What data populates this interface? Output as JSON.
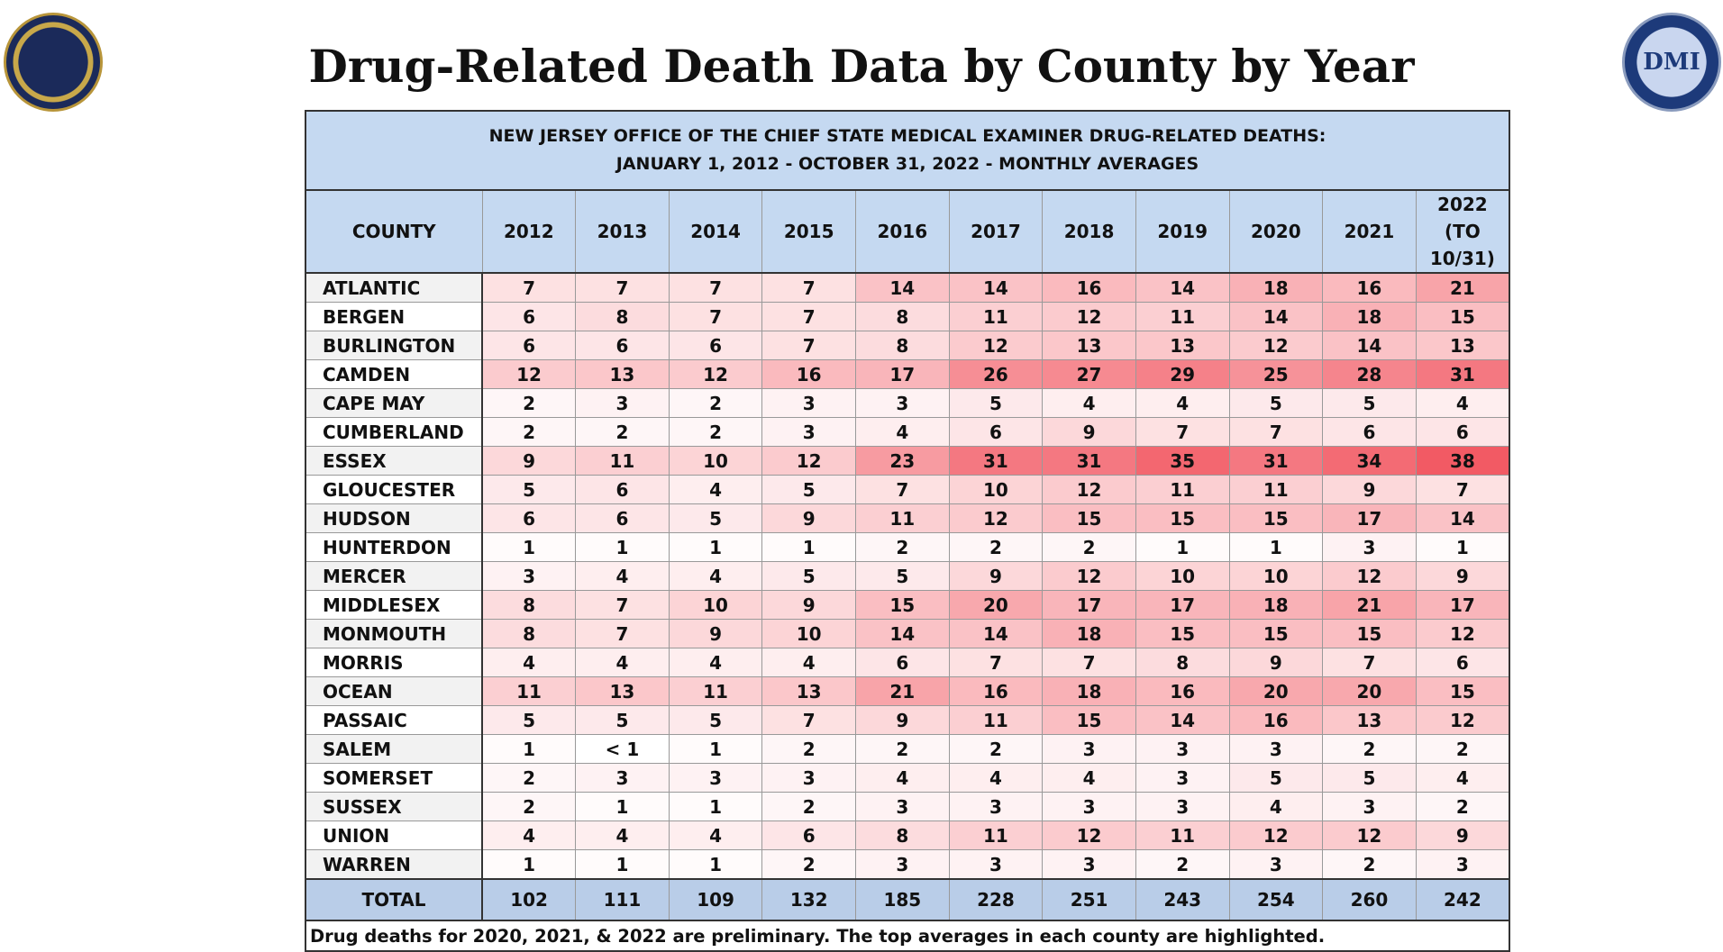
{
  "title": "Drug-Related Death Data by County by Year",
  "logos": {
    "right": "DMI"
  },
  "table": {
    "header": {
      "lines": [
        "NEW JERSEY OFFICE OF THE CHIEF STATE MEDICAL EXAMINER DRUG-RELATED DEATHS:",
        "JANUARY 1, 2012 - OCTOBER 31, 2022 - MONTHLY AVERAGES"
      ]
    },
    "columns": [
      "COUNTY",
      "2012",
      "2013",
      "2014",
      "2015",
      "2016",
      "2017",
      "2018",
      "2019",
      "2020",
      "2021",
      "2022",
      "(TO 10/31)"
    ],
    "rows": [
      {
        "county": "ATLANTIC",
        "values": [
          7,
          7,
          7,
          7,
          14,
          14,
          16,
          14,
          18,
          16,
          21
        ]
      },
      {
        "county": "BERGEN",
        "values": [
          6,
          8,
          7,
          7,
          8,
          11,
          12,
          11,
          14,
          18,
          15
        ]
      },
      {
        "county": "BURLINGTON",
        "values": [
          6,
          6,
          6,
          7,
          8,
          12,
          13,
          13,
          12,
          14,
          13
        ]
      },
      {
        "county": "CAMDEN",
        "values": [
          12,
          13,
          12,
          16,
          17,
          26,
          27,
          29,
          25,
          28,
          31
        ]
      },
      {
        "county": "CAPE MAY",
        "values": [
          2,
          3,
          2,
          3,
          3,
          5,
          4,
          4,
          5,
          5,
          4
        ]
      },
      {
        "county": "CUMBERLAND",
        "values": [
          2,
          2,
          2,
          3,
          4,
          6,
          9,
          7,
          7,
          6,
          6
        ]
      },
      {
        "county": "ESSEX",
        "values": [
          9,
          11,
          10,
          12,
          23,
          31,
          31,
          35,
          31,
          34,
          38
        ]
      },
      {
        "county": "GLOUCESTER",
        "values": [
          5,
          6,
          4,
          5,
          7,
          10,
          12,
          11,
          11,
          9,
          7
        ]
      },
      {
        "county": "HUDSON",
        "values": [
          6,
          6,
          5,
          9,
          11,
          12,
          15,
          15,
          15,
          17,
          14
        ]
      },
      {
        "county": "HUNTERDON",
        "values": [
          1,
          1,
          1,
          1,
          2,
          2,
          2,
          1,
          1,
          3,
          1
        ]
      },
      {
        "county": "MERCER",
        "values": [
          3,
          4,
          4,
          5,
          5,
          9,
          12,
          10,
          10,
          12,
          9
        ]
      },
      {
        "county": "MIDDLESEX",
        "values": [
          8,
          7,
          10,
          9,
          15,
          20,
          17,
          17,
          18,
          21,
          17
        ]
      },
      {
        "county": "MONMOUTH",
        "values": [
          8,
          7,
          9,
          10,
          14,
          14,
          18,
          15,
          15,
          15,
          12
        ]
      },
      {
        "county": "MORRIS",
        "values": [
          4,
          4,
          4,
          4,
          6,
          7,
          7,
          8,
          9,
          7,
          6
        ]
      },
      {
        "county": "OCEAN",
        "values": [
          11,
          13,
          11,
          13,
          21,
          16,
          18,
          16,
          20,
          20,
          15
        ]
      },
      {
        "county": "PASSAIC",
        "values": [
          5,
          5,
          5,
          7,
          9,
          11,
          15,
          14,
          16,
          13,
          12
        ]
      },
      {
        "county": "SALEM",
        "values": [
          1,
          "< 1",
          1,
          2,
          2,
          2,
          3,
          3,
          3,
          2,
          2
        ]
      },
      {
        "county": "SOMERSET",
        "values": [
          2,
          3,
          3,
          3,
          4,
          4,
          4,
          3,
          5,
          5,
          4
        ]
      },
      {
        "county": "SUSSEX",
        "values": [
          2,
          1,
          1,
          2,
          3,
          3,
          3,
          3,
          4,
          3,
          2
        ]
      },
      {
        "county": "UNION",
        "values": [
          4,
          4,
          4,
          6,
          8,
          11,
          12,
          11,
          12,
          12,
          9
        ]
      },
      {
        "county": "WARREN",
        "values": [
          1,
          1,
          1,
          2,
          3,
          3,
          3,
          2,
          3,
          2,
          3
        ]
      }
    ],
    "total": {
      "label": "TOTAL",
      "values": [
        102,
        111,
        109,
        132,
        185,
        228,
        251,
        243,
        254,
        260,
        242
      ]
    }
  },
  "footnote": "Drug deaths for 2020, 2021, & 2022 are preliminary. The top averages in each county are highlighted."
}
